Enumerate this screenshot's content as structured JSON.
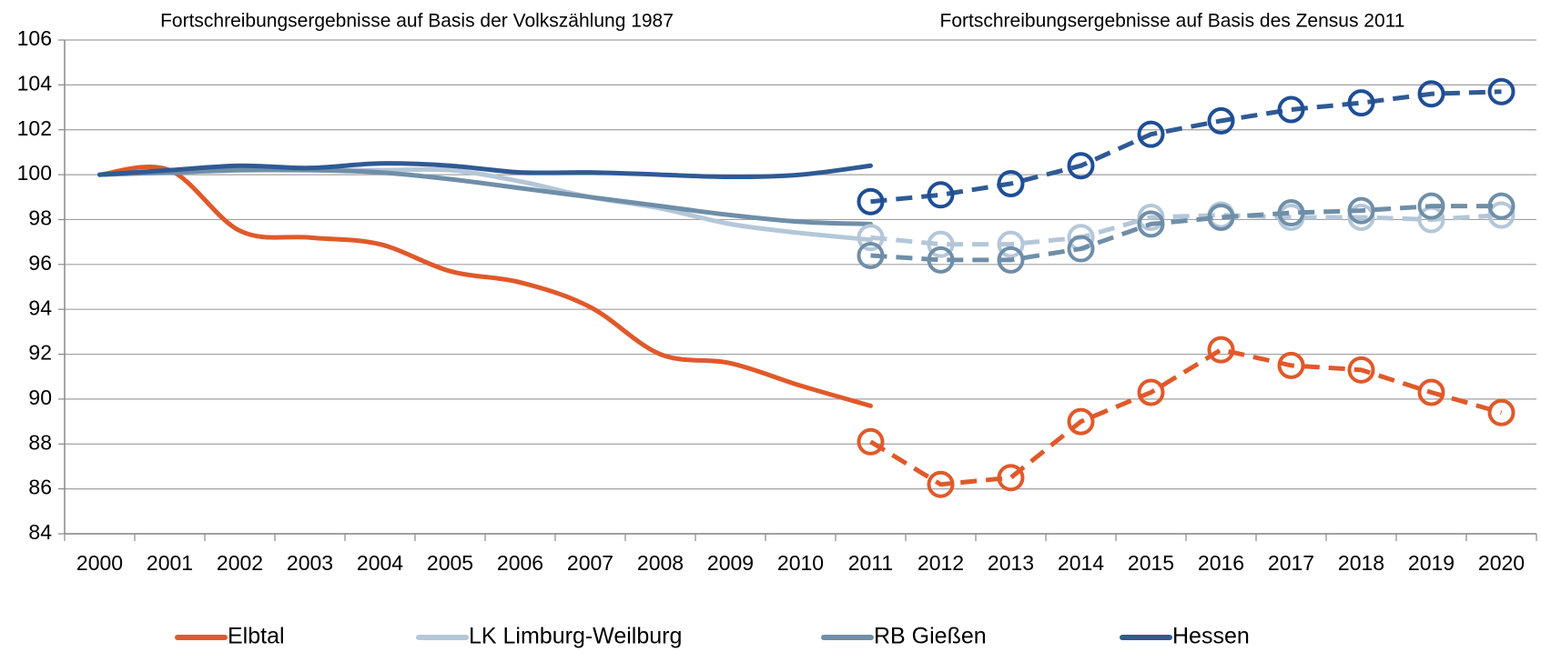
{
  "chart_data": {
    "type": "line",
    "annotations": [
      "Fortschreibungsergebnisse auf Basis der Volkszählung 1987",
      "Fortschreibungsergebnisse auf Basis des Zensus 2011"
    ],
    "categories": [
      "2000",
      "2001",
      "2002",
      "2003",
      "2004",
      "2005",
      "2006",
      "2007",
      "2008",
      "2009",
      "2010",
      "2011",
      "2012",
      "2013",
      "2014",
      "2015",
      "2016",
      "2017",
      "2018",
      "2019",
      "2020"
    ],
    "ylim": [
      84,
      106
    ],
    "yticks": [
      84,
      86,
      88,
      90,
      92,
      94,
      96,
      98,
      100,
      102,
      104,
      106
    ],
    "grid": true,
    "series": [
      {
        "name": "Elbtal",
        "color": "#e0592a",
        "values": [
          100,
          100.2,
          97.5,
          97.2,
          96.9,
          95.7,
          95.2,
          94.1,
          92.0,
          91.6,
          90.6,
          89.7,
          null,
          null,
          null,
          null,
          null,
          null,
          null,
          null,
          null
        ],
        "census_values": [
          null,
          null,
          null,
          null,
          null,
          null,
          null,
          null,
          null,
          null,
          null,
          88.1,
          86.2,
          86.5,
          89.0,
          90.3,
          92.2,
          91.5,
          91.3,
          90.3,
          89.4
        ]
      },
      {
        "name": "LK Limburg-Weilburg",
        "color": "#b4c7d9",
        "values": [
          100,
          100.1,
          100.2,
          100.2,
          100.2,
          100.2,
          99.7,
          99.0,
          98.5,
          97.8,
          97.4,
          97.1,
          null,
          null,
          null,
          null,
          null,
          null,
          null,
          null,
          null
        ],
        "census_values": [
          null,
          null,
          null,
          null,
          null,
          null,
          null,
          null,
          null,
          null,
          null,
          97.2,
          96.9,
          96.9,
          97.2,
          98.1,
          98.2,
          98.1,
          98.1,
          98.0,
          98.2
        ]
      },
      {
        "name": "RB Gießen",
        "color": "#6f8ea8",
        "values": [
          100,
          100.1,
          100.2,
          100.2,
          100.1,
          99.8,
          99.4,
          99.0,
          98.6,
          98.2,
          97.9,
          97.8,
          null,
          null,
          null,
          null,
          null,
          null,
          null,
          null,
          null
        ],
        "census_values": [
          null,
          null,
          null,
          null,
          null,
          null,
          null,
          null,
          null,
          null,
          null,
          96.4,
          96.2,
          96.2,
          96.7,
          97.8,
          98.1,
          98.3,
          98.4,
          98.6,
          98.6
        ]
      },
      {
        "name": "Hessen",
        "color": "#2f5a94",
        "values": [
          100,
          100.2,
          100.4,
          100.3,
          100.5,
          100.4,
          100.1,
          100.1,
          100.0,
          99.9,
          100.0,
          100.4,
          null,
          null,
          null,
          null,
          null,
          null,
          null,
          null,
          null
        ],
        "census_values": [
          null,
          null,
          null,
          null,
          null,
          null,
          null,
          null,
          null,
          null,
          null,
          98.8,
          99.1,
          99.6,
          100.4,
          101.8,
          102.4,
          102.9,
          103.2,
          103.6,
          103.7
        ]
      }
    ]
  }
}
